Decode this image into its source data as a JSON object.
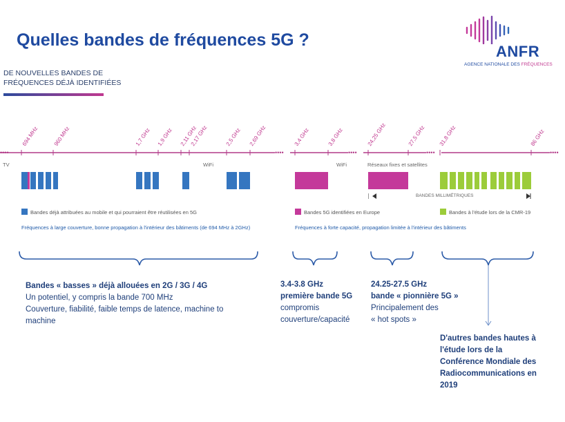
{
  "title": "Quelles bandes de fréquences 5G ?",
  "subtitle": {
    "line1": "DE NOUVELLES BANDES DE",
    "line2": "FRÉQUENCES DÉJÀ IDENTIFIÉES"
  },
  "logo": {
    "name": "ANFR",
    "subtitle_prefix": "AGENCE NATIONALE DES ",
    "subtitle_highlight": "FRÉQUENCES",
    "icon": "anfr-wave-logo"
  },
  "ticks": [
    "694 MHz",
    "960 MHz",
    "1,7 GHz",
    "1,9 GHz",
    "2,11 GHz",
    "2,17 GHz",
    "2,5 GHz",
    "2,69 GHz",
    "3,4 GHz",
    "3,8 GHz",
    "24,25 GHz",
    "27,5 GHz",
    "31,8 GHz",
    "86 GHz"
  ],
  "axis_labels": {
    "tv": "TV",
    "wifi1": "WiFi",
    "wifi2": "WiFi",
    "fixed_sat": "Réseaux fixes et satellites",
    "mmwave": "BANDES MILLIMÉTRIQUES"
  },
  "colors": {
    "blue": "#3576c0",
    "pink": "#c4399a",
    "green": "#9ccc3a",
    "axis": "#b23a88"
  },
  "legend": {
    "blue": "Bandes déjà attribuées au mobile et qui pourraient être réutilisées en 5G",
    "pink": "Bandes 5G identifiées en Europe",
    "green": "Bandes à l'étude lors de la CMR-19"
  },
  "notes": {
    "low": "Fréquences à large couverture, bonne propagation à l'intérieur des bâtiments (de 694 MHz à 2GHz)",
    "high": "Fréquences à forte capacité, propagation limitée à l'intérieur des bâtiments"
  },
  "groups": {
    "low": {
      "title": "Bandes « basses » déjà allouées en 2G / 3G / 4G",
      "l1": "Un potentiel, y compris la bande 700 MHz",
      "l2": "Couverture, fiabilité, faible temps de latence, machine to",
      "l3": "machine"
    },
    "mid": {
      "title1": "3.4-3.8 GHz",
      "title2": "première bande 5G",
      "l1": "compromis",
      "l2": "couverture/capacité"
    },
    "mm": {
      "title1": "24.25-27.5 GHz",
      "title2": "bande « pionnière 5G »",
      "l1": "Principalement des",
      "l2": "« hot spots »"
    },
    "other": {
      "l1": "D'autres bandes hautes à",
      "l2": "l'étude lors de la",
      "l3": "Conférence Mondiale des",
      "l4": "Radiocommunications en",
      "l5": "2019"
    }
  }
}
